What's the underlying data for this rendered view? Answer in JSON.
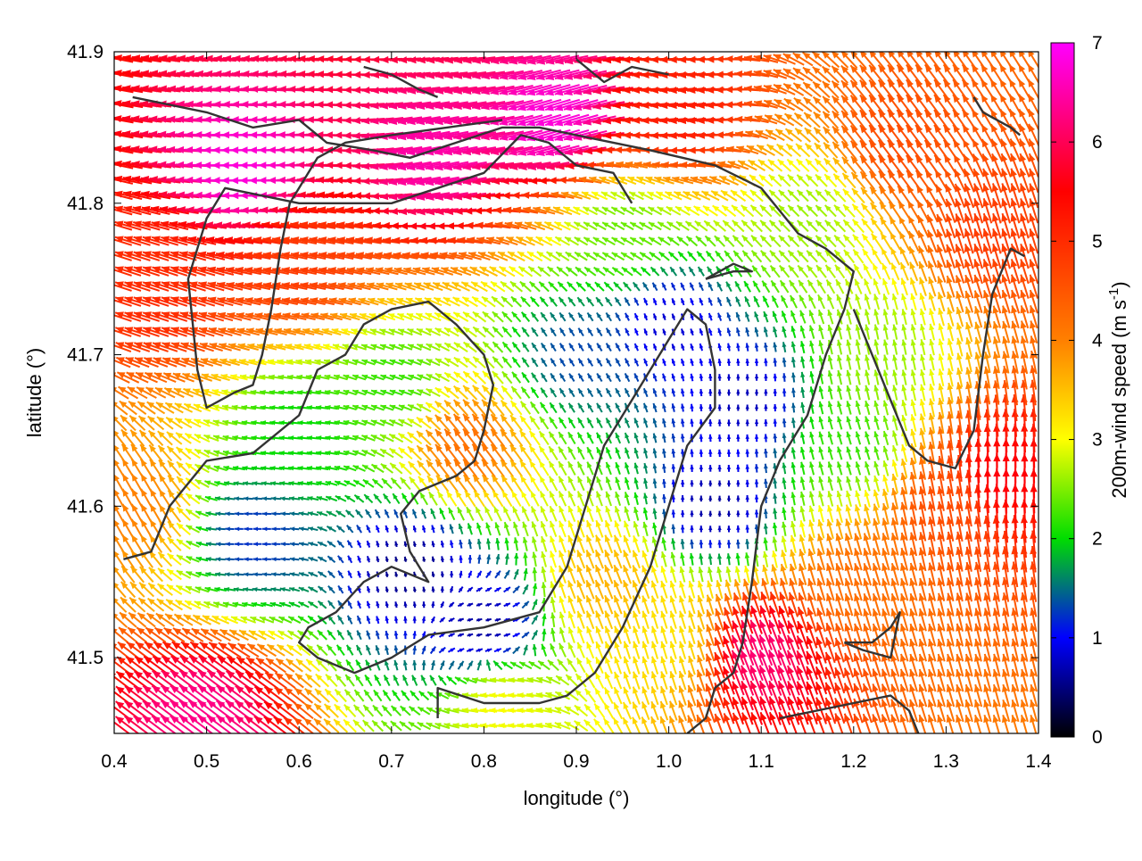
{
  "chart_data": {
    "type": "vector-field",
    "xlabel": "longitude (°)",
    "ylabel": "latitude (°)",
    "xlim": [
      0.4,
      1.4
    ],
    "ylim": [
      41.45,
      41.9
    ],
    "x_ticks": [
      "0.4",
      "0.5",
      "0.6",
      "0.7",
      "0.8",
      "0.9",
      "1.0",
      "1.1",
      "1.2",
      "1.3",
      "1.4"
    ],
    "y_ticks": [
      "41.5",
      "41.6",
      "41.7",
      "41.8",
      "41.9"
    ],
    "y_tick_values": [
      41.5,
      41.6,
      41.7,
      41.8,
      41.9
    ],
    "colorbar": {
      "label": "200m-wind speed (m s",
      "label_superscript": "-1",
      "label_close": ")",
      "range": [
        0,
        7
      ],
      "ticks": [
        "0",
        "1",
        "2",
        "3",
        "4",
        "5",
        "6",
        "7"
      ],
      "colors": [
        "#000000",
        "#0000ff",
        "#00dd00",
        "#ffff00",
        "#ff8000",
        "#ff0000",
        "#ff00ff"
      ]
    },
    "arrow_spacing_deg": 0.01,
    "regions": [
      {
        "lon": 0.55,
        "lat": 41.82,
        "speed": 6.8,
        "u": -1.0,
        "v": 0.0
      },
      {
        "lon": 0.75,
        "lat": 41.83,
        "speed": 6.5,
        "u": -1.0,
        "v": -0.2
      },
      {
        "lon": 0.88,
        "lat": 41.855,
        "speed": 6.8,
        "u": -1.0,
        "v": -0.3
      },
      {
        "lon": 1.02,
        "lat": 41.86,
        "speed": 5.2,
        "u": -1.0,
        "v": -0.1
      },
      {
        "lon": 1.25,
        "lat": 41.84,
        "speed": 4.6,
        "u": -0.6,
        "v": 0.8
      },
      {
        "lon": 1.35,
        "lat": 41.78,
        "speed": 4.8,
        "u": -0.3,
        "v": 1.0
      },
      {
        "lon": 1.36,
        "lat": 41.62,
        "speed": 5.6,
        "u": 0.0,
        "v": 1.0
      },
      {
        "lon": 1.3,
        "lat": 41.6,
        "speed": 4.6,
        "u": -0.2,
        "v": 1.0
      },
      {
        "lon": 1.2,
        "lat": 41.55,
        "speed": 4.2,
        "u": -0.3,
        "v": 1.0
      },
      {
        "lon": 1.1,
        "lat": 41.5,
        "speed": 6.2,
        "u": -0.4,
        "v": 1.0
      },
      {
        "lon": 0.5,
        "lat": 41.46,
        "speed": 6.3,
        "u": -0.8,
        "v": 0.6
      },
      {
        "lon": 0.42,
        "lat": 41.6,
        "speed": 4.0,
        "u": -0.5,
        "v": 0.9
      },
      {
        "lon": 0.45,
        "lat": 41.74,
        "speed": 5.0,
        "u": -0.9,
        "v": 0.3
      },
      {
        "lon": 0.6,
        "lat": 41.76,
        "speed": 4.8,
        "u": -1.0,
        "v": 0.2
      },
      {
        "lon": 0.78,
        "lat": 41.64,
        "speed": 4.2,
        "u": -0.6,
        "v": 0.8
      },
      {
        "lon": 0.93,
        "lat": 41.55,
        "speed": 3.6,
        "u": -0.4,
        "v": 1.0
      },
      {
        "lon": 1.0,
        "lat": 41.51,
        "speed": 3.2,
        "u": -0.3,
        "v": 1.0
      },
      {
        "lon": 0.82,
        "lat": 41.47,
        "speed": 3.0,
        "u": -1.0,
        "v": 0.1
      },
      {
        "lon": 0.6,
        "lat": 41.65,
        "speed": 2.0,
        "u": -1.0,
        "v": 0.1
      },
      {
        "lon": 0.7,
        "lat": 41.68,
        "speed": 2.2,
        "u": -0.9,
        "v": 0.3
      },
      {
        "lon": 0.95,
        "lat": 41.78,
        "speed": 2.4,
        "u": -0.9,
        "v": 0.5
      },
      {
        "lon": 1.15,
        "lat": 41.79,
        "speed": 2.6,
        "u": -0.7,
        "v": 0.7
      },
      {
        "lon": 1.23,
        "lat": 41.7,
        "speed": 2.6,
        "u": -0.2,
        "v": 1.0
      },
      {
        "lon": 0.9,
        "lat": 41.7,
        "speed": 1.3,
        "u": -0.5,
        "v": 0.8
      },
      {
        "lon": 1.0,
        "lat": 41.72,
        "speed": 0.8,
        "u": -0.3,
        "v": 0.9
      },
      {
        "lon": 1.08,
        "lat": 41.67,
        "speed": 0.7,
        "u": 0.0,
        "v": 1.0
      },
      {
        "lon": 1.05,
        "lat": 41.6,
        "speed": 0.6,
        "u": 0.0,
        "v": 1.0
      },
      {
        "lon": 0.72,
        "lat": 41.56,
        "speed": 0.5,
        "u": -0.2,
        "v": 1.0
      },
      {
        "lon": 0.8,
        "lat": 41.52,
        "speed": 0.6,
        "u": 0.8,
        "v": 0.2
      },
      {
        "lon": 0.55,
        "lat": 41.58,
        "speed": 1.2,
        "u": -1.0,
        "v": 0.0
      },
      {
        "lon": 1.2,
        "lat": 41.64,
        "speed": 2.2,
        "u": -0.3,
        "v": 1.0
      }
    ],
    "outlines": [
      [
        [
          0.42,
          41.87
        ],
        [
          0.5,
          41.86
        ],
        [
          0.55,
          41.85
        ],
        [
          0.6,
          41.855
        ],
        [
          0.63,
          41.84
        ],
        [
          0.68,
          41.835
        ],
        [
          0.72,
          41.83
        ],
        [
          0.77,
          41.84
        ],
        [
          0.82,
          41.85
        ],
        [
          0.86,
          41.85
        ],
        [
          0.9,
          41.845
        ],
        [
          0.98,
          41.835
        ],
        [
          1.05,
          41.825
        ],
        [
          1.1,
          41.81
        ],
        [
          1.14,
          41.78
        ],
        [
          1.17,
          41.77
        ],
        [
          1.2,
          41.755
        ],
        [
          1.19,
          41.73
        ],
        [
          1.17,
          41.7
        ],
        [
          1.15,
          41.66
        ],
        [
          1.14,
          41.65
        ],
        [
          1.12,
          41.63
        ],
        [
          1.1,
          41.6
        ],
        [
          1.09,
          41.55
        ],
        [
          1.08,
          41.51
        ],
        [
          1.07,
          41.49
        ],
        [
          1.05,
          41.48
        ],
        [
          1.04,
          41.46
        ],
        [
          1.02,
          41.45
        ]
      ],
      [
        [
          0.96,
          41.8
        ],
        [
          0.94,
          41.82
        ],
        [
          0.9,
          41.825
        ],
        [
          0.87,
          41.84
        ],
        [
          0.84,
          41.845
        ],
        [
          0.8,
          41.82
        ],
        [
          0.75,
          41.81
        ],
        [
          0.7,
          41.8
        ],
        [
          0.65,
          41.8
        ],
        [
          0.6,
          41.8
        ],
        [
          0.56,
          41.805
        ],
        [
          0.52,
          41.81
        ],
        [
          0.5,
          41.79
        ],
        [
          0.49,
          41.77
        ],
        [
          0.48,
          41.75
        ],
        [
          0.485,
          41.72
        ],
        [
          0.49,
          41.69
        ],
        [
          0.5,
          41.665
        ],
        [
          0.53,
          41.675
        ],
        [
          0.55,
          41.68
        ],
        [
          0.56,
          41.7
        ],
        [
          0.57,
          41.73
        ],
        [
          0.58,
          41.77
        ],
        [
          0.59,
          41.8
        ],
        [
          0.62,
          41.83
        ],
        [
          0.65,
          41.84
        ],
        [
          0.7,
          41.845
        ],
        [
          0.76,
          41.85
        ],
        [
          0.82,
          41.855
        ]
      ],
      [
        [
          0.41,
          41.565
        ],
        [
          0.44,
          41.57
        ],
        [
          0.46,
          41.6
        ],
        [
          0.5,
          41.63
        ],
        [
          0.55,
          41.635
        ],
        [
          0.6,
          41.66
        ],
        [
          0.62,
          41.69
        ],
        [
          0.65,
          41.7
        ],
        [
          0.67,
          41.72
        ],
        [
          0.7,
          41.73
        ],
        [
          0.74,
          41.735
        ],
        [
          0.77,
          41.72
        ],
        [
          0.8,
          41.7
        ],
        [
          0.81,
          41.68
        ],
        [
          0.8,
          41.65
        ],
        [
          0.79,
          41.63
        ],
        [
          0.77,
          41.62
        ],
        [
          0.73,
          41.61
        ],
        [
          0.71,
          41.595
        ],
        [
          0.72,
          41.57
        ],
        [
          0.74,
          41.55
        ],
        [
          0.7,
          41.56
        ],
        [
          0.67,
          41.55
        ],
        [
          0.64,
          41.53
        ],
        [
          0.61,
          41.52
        ],
        [
          0.6,
          41.51
        ],
        [
          0.62,
          41.5
        ],
        [
          0.66,
          41.49
        ],
        [
          0.7,
          41.5
        ],
        [
          0.74,
          41.515
        ],
        [
          0.8,
          41.52
        ],
        [
          0.86,
          41.53
        ],
        [
          0.89,
          41.56
        ],
        [
          0.91,
          41.6
        ],
        [
          0.93,
          41.64
        ],
        [
          0.96,
          41.67
        ],
        [
          0.99,
          41.7
        ],
        [
          1.02,
          41.73
        ],
        [
          1.04,
          41.72
        ],
        [
          1.05,
          41.69
        ],
        [
          1.05,
          41.665
        ],
        [
          1.02,
          41.64
        ],
        [
          1.0,
          41.6
        ],
        [
          0.98,
          41.56
        ],
        [
          0.95,
          41.52
        ],
        [
          0.92,
          41.49
        ],
        [
          0.89,
          41.475
        ],
        [
          0.86,
          41.47
        ],
        [
          0.8,
          41.47
        ],
        [
          0.75,
          41.48
        ],
        [
          0.75,
          41.46
        ]
      ],
      [
        [
          1.04,
          41.75
        ],
        [
          1.07,
          41.76
        ],
        [
          1.09,
          41.755
        ],
        [
          1.07,
          41.755
        ],
        [
          1.04,
          41.75
        ]
      ],
      [
        [
          1.12,
          41.46
        ],
        [
          1.16,
          41.465
        ],
        [
          1.2,
          41.47
        ],
        [
          1.24,
          41.475
        ],
        [
          1.26,
          41.465
        ],
        [
          1.27,
          41.45
        ]
      ],
      [
        [
          1.19,
          41.51
        ],
        [
          1.22,
          41.51
        ],
        [
          1.24,
          41.52
        ],
        [
          1.25,
          41.53
        ],
        [
          1.24,
          41.5
        ],
        [
          1.21,
          41.505
        ],
        [
          1.19,
          41.51
        ]
      ],
      [
        [
          1.2,
          41.73
        ],
        [
          1.22,
          41.7
        ],
        [
          1.24,
          41.67
        ],
        [
          1.26,
          41.64
        ],
        [
          1.28,
          41.63
        ],
        [
          1.31,
          41.625
        ],
        [
          1.33,
          41.65
        ],
        [
          1.34,
          41.7
        ],
        [
          1.35,
          41.74
        ],
        [
          1.37,
          41.77
        ],
        [
          1.385,
          41.765
        ]
      ],
      [
        [
          1.33,
          41.87
        ],
        [
          1.34,
          41.86
        ],
        [
          1.37,
          41.85
        ],
        [
          1.38,
          41.845
        ]
      ],
      [
        [
          0.67,
          41.89
        ],
        [
          0.7,
          41.885
        ],
        [
          0.73,
          41.875
        ],
        [
          0.75,
          41.87
        ]
      ],
      [
        [
          0.9,
          41.895
        ],
        [
          0.93,
          41.88
        ],
        [
          0.96,
          41.89
        ],
        [
          1.0,
          41.885
        ]
      ]
    ]
  }
}
